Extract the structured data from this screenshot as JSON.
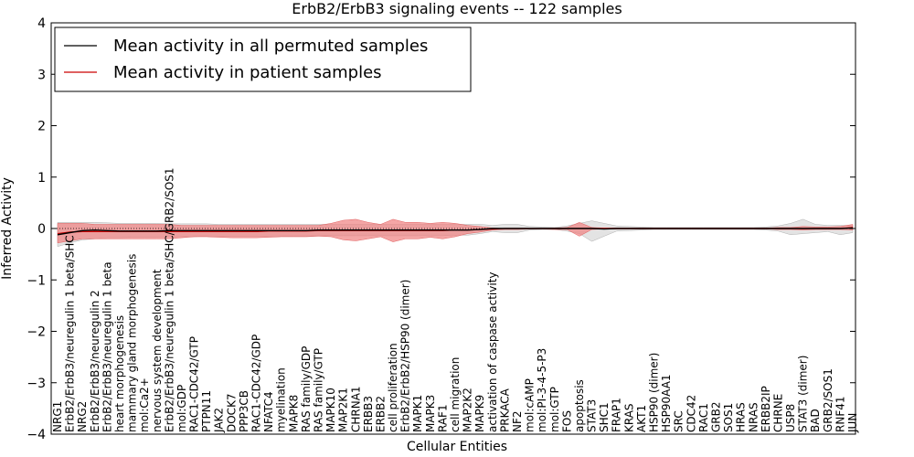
{
  "chart_data": {
    "type": "line",
    "title": "ErbB2/ErbB3 signaling events -- 122 samples",
    "xlabel": "Cellular Entities",
    "ylabel": "Inferred Activity",
    "ylim": [
      -4,
      4
    ],
    "yticks": [
      -4,
      -3,
      -2,
      -1,
      0,
      1,
      2,
      3,
      4
    ],
    "ytick_labels": [
      "−4",
      "−3",
      "−2",
      "−1",
      "0",
      "1",
      "2",
      "3",
      "4"
    ],
    "grid": false,
    "legend_position": "top-left",
    "categories": [
      "NRG1",
      "ErbB2/ErbB3/neuregulin 1 beta/SHC",
      "NRG2",
      "ErbB2/ErbB3/neuregulin 2",
      "ErbB2/ErbB3/neuregulin 1 beta",
      "heart morphogenesis",
      "mammary gland morphogenesis",
      "mol:Ca2+",
      "nervous system development",
      "ErbB2/ErbB3/neuregulin 1 beta/SHC/GRB2/SOS1",
      "mol:GDP",
      "RAC1-CDC42/GTP",
      "PTPN11",
      "JAK2",
      "DOCK7",
      "PPP3CB",
      "RAC1-CDC42/GDP",
      "NFATC4",
      "myelination",
      "MAPK8",
      "RAS family/GDP",
      "RAS family/GTP",
      "MAPK10",
      "MAP2K1",
      "CHRNA1",
      "ERBB3",
      "ERBB2",
      "cell proliferation",
      "ErbB2/ErbB2/HSP90 (dimer)",
      "MAPK1",
      "MAPK3",
      "RAF1",
      "cell migration",
      "MAP2K2",
      "MAPK9",
      "activation of caspase activity",
      "PRKACA",
      "NF2",
      "mol:cAMP",
      "mol:PI-3-4-5-P3",
      "mol:GTP",
      "FOS",
      "apoptosis",
      "STAT3",
      "SHC1",
      "FRAP1",
      "KRAS",
      "AKT1",
      "HSP90 (dimer)",
      "HSP90AA1",
      "SRC",
      "CDC42",
      "RAC1",
      "GRB2",
      "SOS1",
      "HRAS",
      "NRAS",
      "ERBB2IP",
      "CHRNE",
      "USP8",
      "STAT3 (dimer)",
      "BAD",
      "GRB2/SOS1",
      "RNF41",
      "JUN"
    ],
    "series": [
      {
        "name": "Mean activity in all permuted samples",
        "color": "#000000",
        "values": [
          -0.12,
          -0.08,
          -0.04,
          -0.03,
          -0.04,
          -0.05,
          -0.05,
          -0.05,
          -0.05,
          -0.04,
          -0.04,
          -0.04,
          -0.04,
          -0.04,
          -0.04,
          -0.04,
          -0.04,
          -0.04,
          -0.04,
          -0.04,
          -0.04,
          -0.03,
          -0.03,
          -0.03,
          -0.03,
          -0.03,
          -0.03,
          -0.03,
          -0.03,
          -0.03,
          -0.03,
          -0.03,
          -0.03,
          -0.03,
          -0.02,
          0.0,
          0.0,
          0.0,
          0.0,
          0.0,
          0.0,
          0.0,
          0.0,
          0.0,
          -0.01,
          0.0,
          0.0,
          0.0,
          0.0,
          0.0,
          0.0,
          0.0,
          0.0,
          0.0,
          0.0,
          0.0,
          0.0,
          0.0,
          0.0,
          0.0,
          0.0,
          0.0,
          0.0,
          0.0,
          0.01
        ],
        "band_low": [
          -0.35,
          -0.28,
          -0.22,
          -0.2,
          -0.18,
          -0.18,
          -0.17,
          -0.17,
          -0.17,
          -0.16,
          -0.16,
          -0.16,
          -0.15,
          -0.15,
          -0.15,
          -0.15,
          -0.15,
          -0.15,
          -0.15,
          -0.15,
          -0.15,
          -0.14,
          -0.14,
          -0.14,
          -0.14,
          -0.14,
          -0.14,
          -0.14,
          -0.14,
          -0.14,
          -0.14,
          -0.14,
          -0.13,
          -0.13,
          -0.1,
          -0.06,
          -0.08,
          -0.08,
          -0.03,
          -0.02,
          -0.02,
          -0.05,
          -0.1,
          -0.25,
          -0.15,
          -0.05,
          -0.04,
          -0.03,
          -0.02,
          -0.02,
          -0.02,
          -0.02,
          -0.02,
          -0.02,
          -0.02,
          -0.02,
          -0.02,
          -0.03,
          -0.05,
          -0.12,
          -0.1,
          -0.08,
          -0.06,
          -0.12,
          -0.08
        ],
        "band_high": [
          0.12,
          0.12,
          0.12,
          0.12,
          0.11,
          0.1,
          0.1,
          0.1,
          0.1,
          0.09,
          0.09,
          0.09,
          0.09,
          0.08,
          0.08,
          0.08,
          0.08,
          0.08,
          0.08,
          0.08,
          0.08,
          0.08,
          0.08,
          0.08,
          0.08,
          0.08,
          0.08,
          0.08,
          0.08,
          0.08,
          0.08,
          0.08,
          0.08,
          0.08,
          0.08,
          0.06,
          0.08,
          0.08,
          0.04,
          0.03,
          0.02,
          0.05,
          0.1,
          0.15,
          0.1,
          0.05,
          0.04,
          0.03,
          0.02,
          0.02,
          0.02,
          0.02,
          0.02,
          0.02,
          0.02,
          0.02,
          0.02,
          0.03,
          0.05,
          0.1,
          0.18,
          0.08,
          0.06,
          0.06,
          0.06
        ]
      },
      {
        "name": "Mean activity in patient samples",
        "color": "#cc0000",
        "values": [
          -0.1,
          -0.07,
          -0.06,
          -0.06,
          -0.06,
          -0.06,
          -0.06,
          -0.06,
          -0.06,
          -0.06,
          -0.06,
          -0.06,
          -0.06,
          -0.06,
          -0.06,
          -0.06,
          -0.06,
          -0.05,
          -0.05,
          -0.05,
          -0.05,
          -0.04,
          -0.04,
          -0.04,
          -0.04,
          -0.04,
          -0.04,
          -0.04,
          -0.04,
          -0.04,
          -0.04,
          -0.04,
          -0.03,
          -0.03,
          -0.02,
          -0.01,
          0.0,
          0.0,
          0.0,
          0.0,
          0.0,
          0.0,
          0.0,
          0.0,
          0.0,
          0.0,
          0.0,
          0.0,
          0.0,
          0.0,
          0.0,
          0.0,
          0.0,
          0.0,
          0.0,
          0.0,
          0.0,
          0.0,
          0.0,
          0.0,
          0.0,
          0.0,
          0.0,
          0.0,
          0.02
        ],
        "band_low": [
          -0.28,
          -0.24,
          -0.2,
          -0.2,
          -0.2,
          -0.2,
          -0.2,
          -0.2,
          -0.2,
          -0.2,
          -0.18,
          -0.16,
          -0.16,
          -0.17,
          -0.18,
          -0.18,
          -0.18,
          -0.17,
          -0.16,
          -0.16,
          -0.16,
          -0.15,
          -0.16,
          -0.22,
          -0.24,
          -0.2,
          -0.16,
          -0.26,
          -0.2,
          -0.2,
          -0.17,
          -0.2,
          -0.16,
          -0.1,
          -0.07,
          -0.03,
          -0.02,
          -0.02,
          -0.01,
          -0.01,
          -0.02,
          -0.02,
          -0.15,
          -0.02,
          -0.01,
          -0.01,
          -0.01,
          -0.01,
          -0.01,
          -0.01,
          -0.01,
          -0.01,
          -0.01,
          -0.01,
          -0.01,
          -0.01,
          -0.01,
          -0.01,
          -0.02,
          -0.02,
          -0.03,
          -0.02,
          -0.02,
          -0.02,
          -0.03
        ],
        "band_high": [
          0.1,
          0.1,
          0.1,
          0.08,
          0.08,
          0.08,
          0.08,
          0.08,
          0.08,
          0.08,
          0.06,
          0.06,
          0.06,
          0.06,
          0.06,
          0.06,
          0.06,
          0.06,
          0.06,
          0.06,
          0.06,
          0.06,
          0.1,
          0.16,
          0.18,
          0.12,
          0.08,
          0.18,
          0.12,
          0.12,
          0.1,
          0.12,
          0.1,
          0.06,
          0.04,
          0.01,
          0.0,
          0.0,
          0.0,
          0.0,
          0.01,
          0.02,
          0.12,
          0.02,
          0.01,
          0.01,
          0.01,
          0.01,
          0.01,
          0.01,
          0.01,
          0.01,
          0.01,
          0.01,
          0.01,
          0.01,
          0.01,
          0.01,
          0.02,
          0.02,
          0.04,
          0.03,
          0.03,
          0.04,
          0.08
        ]
      }
    ]
  }
}
